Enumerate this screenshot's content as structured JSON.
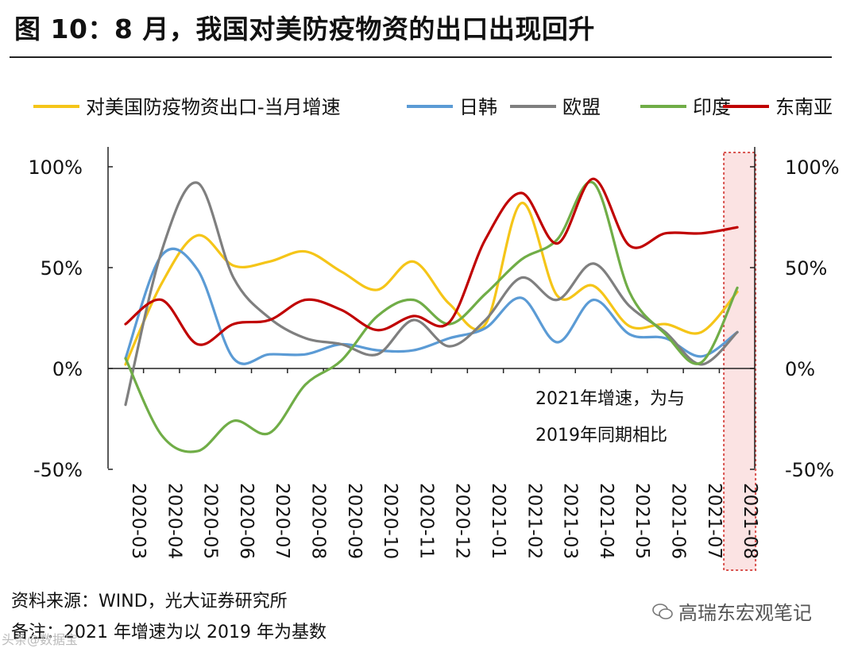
{
  "title": "图 10：8 月，我国对美防疫物资的出口出现回升",
  "source": "资料来源：WIND，光大证券研究所",
  "note": "备注：2021 年增速为以 2019 年为基数",
  "watermark": "高瑞东宏观笔记",
  "watermark_left": "头条@数据宝",
  "chart_data": {
    "type": "line",
    "title": "",
    "x": [
      "2020-03",
      "2020-04",
      "2020-05",
      "2020-06",
      "2020-07",
      "2020-08",
      "2020-09",
      "2020-10",
      "2020-11",
      "2020-12",
      "2021-01",
      "2021-02",
      "2021-03",
      "2021-04",
      "2021-05",
      "2021-06",
      "2021-07",
      "2021-08"
    ],
    "ylim": [
      -50,
      100
    ],
    "yticks": [
      -50,
      0,
      50,
      100
    ],
    "ytick_labels": [
      "-50%",
      "0%",
      "50%",
      "100%"
    ],
    "annotation_lines": [
      "2021年增速，为与",
      "2019年同期相比"
    ],
    "highlight_category": "2021-08",
    "legend_position": "top",
    "series": [
      {
        "name": "对美国防疫物资出口-当月增速",
        "color": "#f5c518",
        "values": [
          2,
          42,
          66,
          51,
          53,
          58,
          48,
          39,
          53,
          32,
          22,
          82,
          36,
          41,
          21,
          22,
          18,
          38
        ]
      },
      {
        "name": "日韩",
        "color": "#5b9bd5",
        "values": [
          5,
          56,
          49,
          5,
          7,
          7,
          12,
          9,
          9,
          15,
          20,
          35,
          13,
          34,
          17,
          15,
          6,
          18
        ]
      },
      {
        "name": "欧盟",
        "color": "#7f7f7f",
        "values": [
          -18,
          58,
          92,
          45,
          25,
          15,
          12,
          7,
          24,
          11,
          24,
          45,
          34,
          52,
          31,
          18,
          2,
          18
        ]
      },
      {
        "name": "印度",
        "color": "#70ad47",
        "values": [
          5,
          -33,
          -41,
          -26,
          -32,
          -8,
          4,
          26,
          34,
          22,
          37,
          54,
          64,
          92,
          38,
          17,
          3,
          40
        ]
      },
      {
        "name": "东南亚",
        "color": "#c00000",
        "values": [
          22,
          34,
          12,
          22,
          24,
          34,
          29,
          19,
          26,
          23,
          64,
          87,
          62,
          94,
          61,
          67,
          67,
          70
        ]
      }
    ]
  }
}
